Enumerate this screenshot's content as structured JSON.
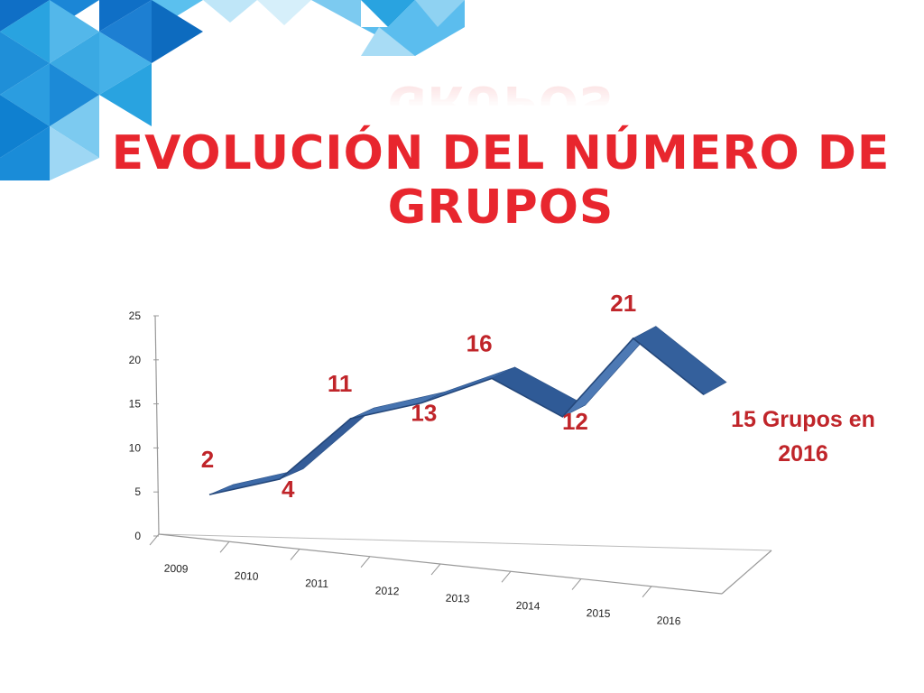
{
  "title": {
    "line1": "EVOLUCIÓN DEL NÚMERO DE",
    "line2": "GRUPOS"
  },
  "colors": {
    "title": "#e8262e",
    "series": "#3d6aa8",
    "data_label": "#c0252a",
    "decor_blues": [
      "#0f6fc6",
      "#29a3e0",
      "#7ccaf0",
      "#bfe6f8"
    ]
  },
  "annotation": {
    "line1": "15 Grupos en",
    "line2": "2016"
  },
  "chart_data": {
    "type": "line",
    "style": "3d-ribbon",
    "categories": [
      "2009",
      "2010",
      "2011",
      "2012",
      "2013",
      "2014",
      "2015",
      "2016"
    ],
    "series": [
      {
        "values": [
          2,
          4,
          11,
          13,
          16,
          12,
          21,
          15
        ]
      }
    ],
    "data_labels": [
      "2",
      "4",
      "11",
      "13",
      "16",
      "12",
      "21"
    ],
    "ylim": [
      0,
      25
    ],
    "yticks": [
      0,
      5,
      10,
      15,
      20,
      25
    ],
    "grid": false,
    "legend": "none"
  }
}
